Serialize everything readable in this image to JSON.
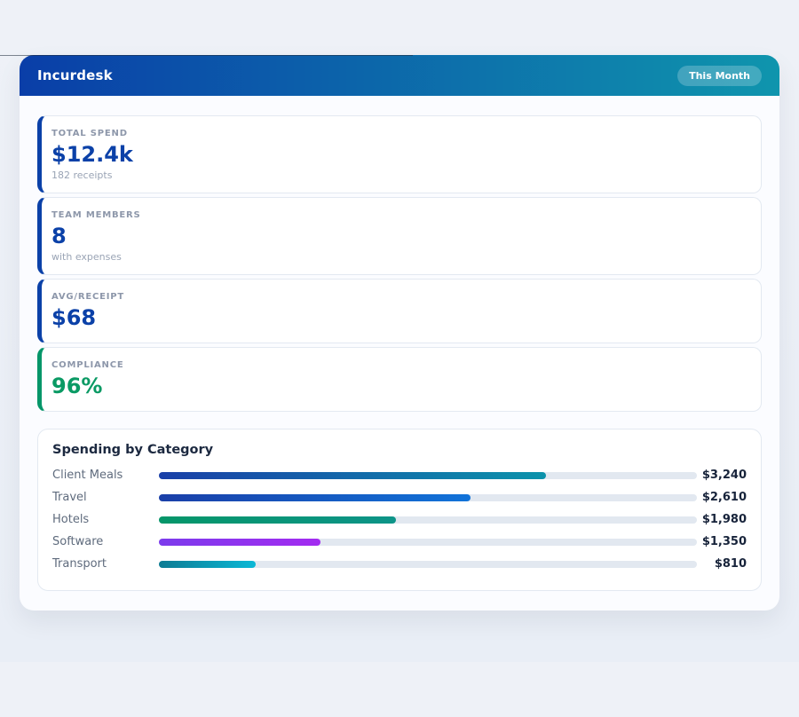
{
  "header": {
    "title": "Incurdesk",
    "badge": "This Month"
  },
  "stats": [
    {
      "label": "TOTAL SPEND",
      "value": "$12.4k",
      "sub": "182 receipts",
      "accent": "#0b41a8",
      "value_color": "#0b41a8"
    },
    {
      "label": "TEAM MEMBERS",
      "value": "8",
      "sub": "with expenses",
      "accent": "#0b41a8",
      "value_color": "#0b41a8"
    },
    {
      "label": "AVG/RECEIPT",
      "value": "$68",
      "sub": "",
      "accent": "#0b41a8",
      "value_color": "#0b41a8"
    },
    {
      "label": "COMPLIANCE",
      "value": "96%",
      "sub": "",
      "accent": "#059669",
      "value_color": "#0a9a64"
    }
  ],
  "spending": {
    "title": "Spending by Category",
    "rows": [
      {
        "label": "Client Meals",
        "value_label": "$3,240",
        "pct": 72,
        "from": "#1a3fa8",
        "to": "#0c93ab"
      },
      {
        "label": "Travel",
        "value_label": "$2,610",
        "pct": 58,
        "from": "#1a3fa8",
        "to": "#1173d9"
      },
      {
        "label": "Hotels",
        "value_label": "$1,980",
        "pct": 44,
        "from": "#059669",
        "to": "#0d9488"
      },
      {
        "label": "Software",
        "value_label": "$1,350",
        "pct": 30,
        "from": "#7c3bec",
        "to": "#a32bf0"
      },
      {
        "label": "Transport",
        "value_label": "$810",
        "pct": 18,
        "from": "#0d7b93",
        "to": "#0cb8d6"
      }
    ]
  },
  "chart_data": {
    "type": "bar",
    "orientation": "horizontal",
    "title": "Spending by Category",
    "categories": [
      "Client Meals",
      "Travel",
      "Hotels",
      "Software",
      "Transport"
    ],
    "values": [
      3240,
      2610,
      1980,
      1350,
      810
    ],
    "value_labels": [
      "$3,240",
      "$2,610",
      "$1,980",
      "$1,350",
      "$810"
    ],
    "xlim": [
      0,
      4500
    ],
    "grid": false,
    "legend": false,
    "bar_gradients": [
      [
        "#1a3fa8",
        "#0c93ab"
      ],
      [
        "#1a3fa8",
        "#1173d9"
      ],
      [
        "#059669",
        "#0d9488"
      ],
      [
        "#7c3bec",
        "#a32bf0"
      ],
      [
        "#0d7b93",
        "#0cb8d6"
      ]
    ],
    "track_color": "#e2e8f0"
  },
  "theme": {
    "header_gradient_from": "#0a3ea8",
    "header_gradient_to": "#0f95ad",
    "page_background": "#eef1f7",
    "card_border": "#e3e9f1"
  }
}
